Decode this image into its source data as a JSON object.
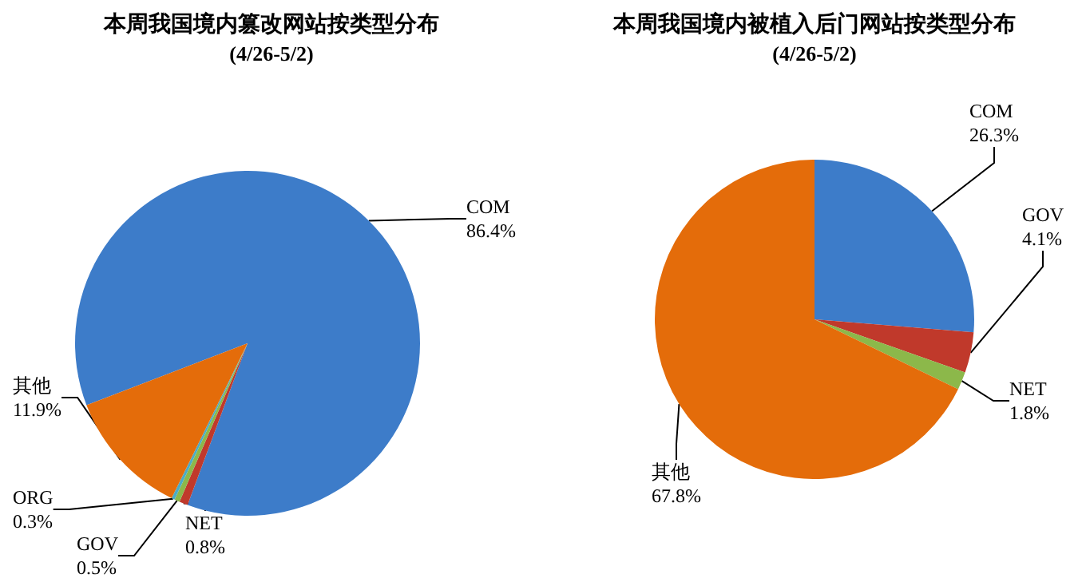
{
  "chart_data": [
    {
      "type": "pie",
      "title": "本周我国境内篡改网站按类型分布",
      "subtitle": "(4/26-5/2)",
      "categories": [
        "COM",
        "NET",
        "GOV",
        "ORG",
        "其他"
      ],
      "values": [
        86.4,
        0.8,
        0.5,
        0.3,
        11.9
      ],
      "colors": [
        "#3d7cc9",
        "#c0392b",
        "#8cb84a",
        "#4bacc6",
        "#e46c0a"
      ],
      "value_labels": [
        "86.4%",
        "0.8%",
        "0.5%",
        "0.3%",
        "11.9%"
      ],
      "legend": false
    },
    {
      "type": "pie",
      "title": "本周我国境内被植入后门网站按类型分布",
      "subtitle": "(4/26-5/2)",
      "categories": [
        "COM",
        "GOV",
        "NET",
        "其他"
      ],
      "values": [
        26.3,
        4.1,
        1.8,
        67.8
      ],
      "colors": [
        "#3d7cc9",
        "#c0392b",
        "#8cb84a",
        "#e46c0a"
      ],
      "value_labels": [
        "26.3%",
        "4.1%",
        "1.8%",
        "67.8%"
      ],
      "legend": false
    }
  ]
}
